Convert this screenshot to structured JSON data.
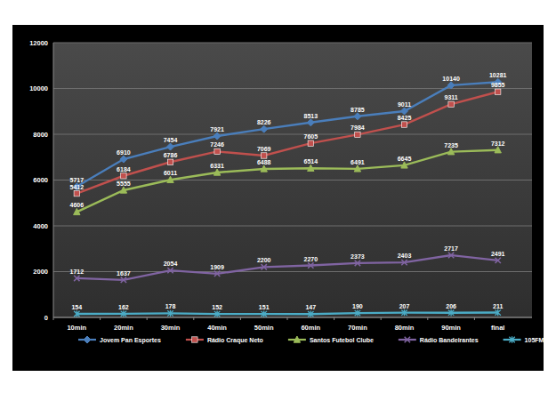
{
  "chart_data": {
    "type": "line",
    "categories": [
      "10min",
      "20min",
      "30min",
      "40min",
      "50min",
      "60min",
      "70min",
      "80min",
      "90min",
      "final"
    ],
    "series": [
      {
        "name": "Jovem Pan Esportes",
        "color": "#4a7ebb",
        "marker": "diamond",
        "values": [
          5717,
          6910,
          7454,
          7921,
          8226,
          8513,
          8785,
          9011,
          10140,
          10281
        ]
      },
      {
        "name": "Rádio Craque Neto",
        "color": "#c0504d",
        "marker": "square",
        "values": [
          5412,
          6184,
          6786,
          7246,
          7069,
          7605,
          7984,
          8425,
          9311,
          9855
        ]
      },
      {
        "name": "Santos Futebol Clube",
        "color": "#9bbb59",
        "marker": "triangle",
        "values": [
          4606,
          5555,
          6011,
          6331,
          6488,
          6514,
          6491,
          6645,
          7235,
          7312
        ]
      },
      {
        "name": "Rádio Bandeirantes",
        "color": "#8064a2",
        "marker": "x",
        "values": [
          1712,
          1637,
          2054,
          1909,
          2200,
          2270,
          2373,
          2403,
          2717,
          2491
        ]
      },
      {
        "name": "105FM",
        "color": "#4bacc6",
        "marker": "star",
        "values": [
          154,
          162,
          178,
          152,
          151,
          147,
          190,
          207,
          206,
          211
        ]
      }
    ],
    "ylim": [
      0,
      12000
    ],
    "yticks": [
      0,
      2000,
      4000,
      6000,
      8000,
      10000,
      12000
    ],
    "grid": true,
    "data_labels": true,
    "legend": "bottom"
  }
}
